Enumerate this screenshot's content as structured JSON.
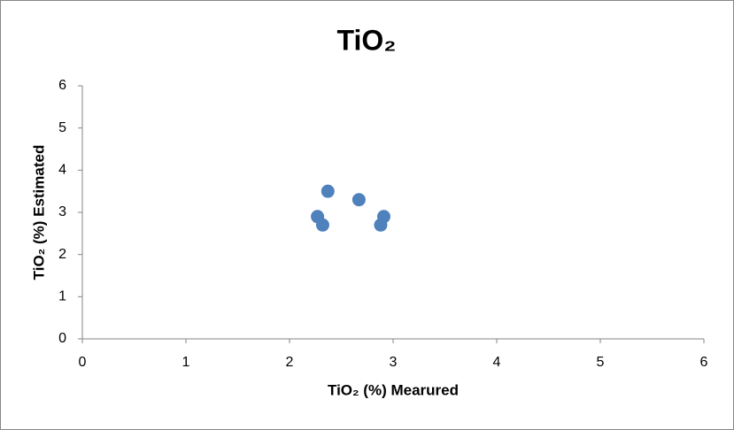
{
  "chart_data": {
    "type": "scatter",
    "title": "TiO₂",
    "x_label": "TiO₂ (%) Mearured",
    "y_label": "TiO₂ (%) Estimated",
    "x": [
      2.27,
      2.32,
      2.37,
      2.67,
      2.88,
      2.91
    ],
    "series": [
      {
        "name": "TiO₂",
        "color": "#4f81bd",
        "values": [
          2.9,
          2.7,
          3.5,
          3.3,
          2.7,
          2.9
        ]
      }
    ],
    "xlim": [
      0,
      6
    ],
    "xticks": [
      0,
      1,
      2,
      3,
      4,
      5,
      6
    ],
    "ylim": [
      0,
      6
    ],
    "yticks": [
      0,
      1,
      2,
      3,
      4,
      5,
      6
    ],
    "grid": false
  }
}
